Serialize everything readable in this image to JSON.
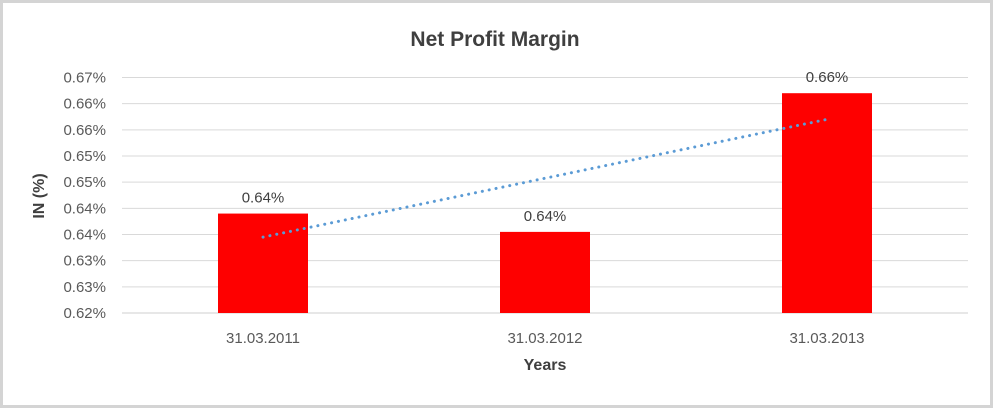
{
  "chart_data": {
    "type": "bar",
    "title": "Net Profit Margin",
    "xlabel": "Years",
    "ylabel": "IN (%)",
    "categories": [
      "31.03.2011",
      "31.03.2012",
      "31.03.2013"
    ],
    "values": [
      0.639,
      0.6355,
      0.662
    ],
    "bar_labels": [
      "0.64%",
      "0.64%",
      "0.66%"
    ],
    "bar_color": "#fe0000",
    "ylim": [
      0.62,
      0.665
    ],
    "ytick_step": 0.005,
    "ytick_labels_bottom_to_top": [
      "0.62%",
      "0.63%",
      "0.63%",
      "0.64%",
      "0.64%",
      "0.65%",
      "0.65%",
      "0.66%",
      "0.66%",
      "0.67%"
    ],
    "grid": true,
    "legend": "none",
    "gridline_color": "#d9d9d9",
    "axis_line_color": "#cfcfcf",
    "frame_color": "#d4d4d4",
    "trendline": {
      "style": "dotted",
      "color": "#5b9bd5",
      "start_value": 0.6345,
      "end_value": 0.657
    }
  }
}
